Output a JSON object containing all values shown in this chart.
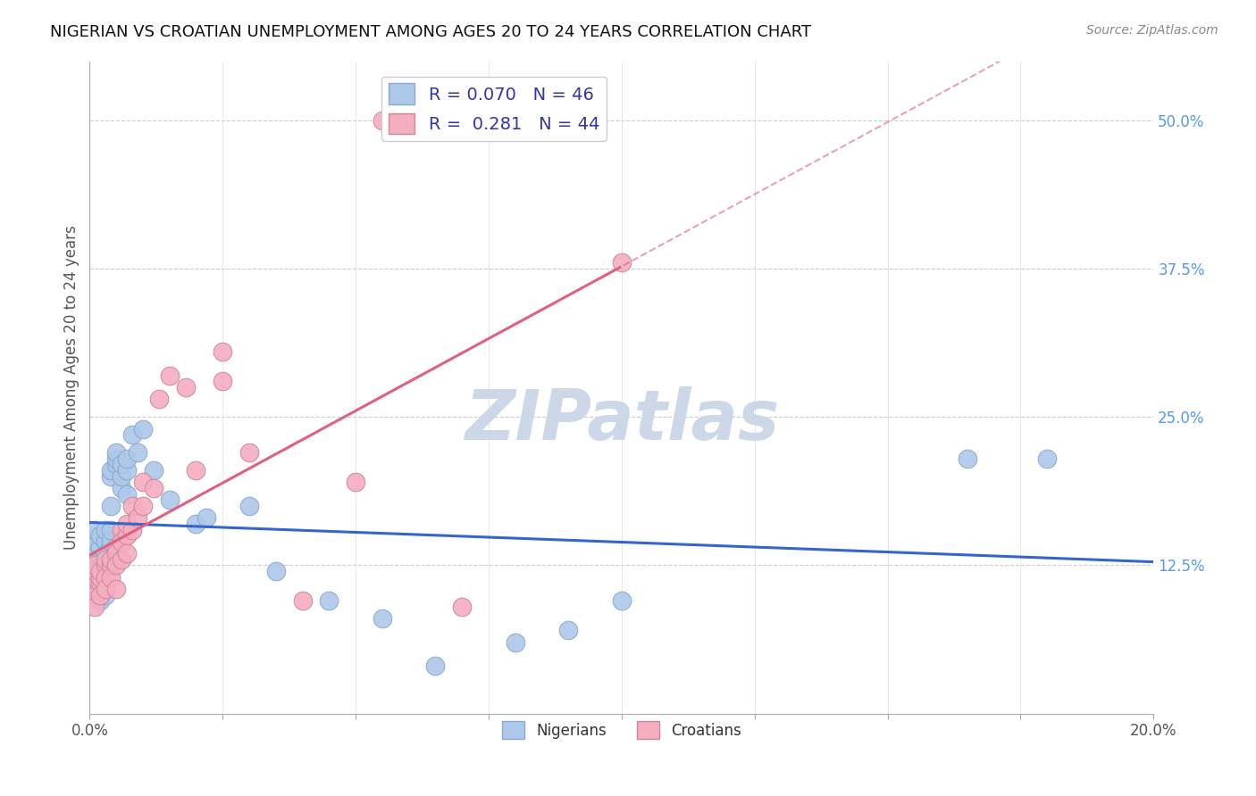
{
  "title": "NIGERIAN VS CROATIAN UNEMPLOYMENT AMONG AGES 20 TO 24 YEARS CORRELATION CHART",
  "source": "Source: ZipAtlas.com",
  "ylabel": "Unemployment Among Ages 20 to 24 years",
  "xlim": [
    0.0,
    0.2
  ],
  "ylim": [
    0.0,
    0.55
  ],
  "nigerian_R": 0.07,
  "nigerian_N": 46,
  "croatian_R": 0.281,
  "croatian_N": 44,
  "nigerian_color": "#adc8e8",
  "croatian_color": "#f5adc0",
  "nigerian_line_color": "#3366cc",
  "croatian_line_color": "#e06080",
  "watermark": "ZIPatlas",
  "watermark_color": "#ccd8e8",
  "background_color": "#ffffff",
  "nigerian_x": [
    0.001,
    0.001,
    0.001,
    0.001,
    0.002,
    0.002,
    0.002,
    0.002,
    0.002,
    0.003,
    0.003,
    0.003,
    0.003,
    0.003,
    0.003,
    0.004,
    0.004,
    0.004,
    0.004,
    0.004,
    0.005,
    0.005,
    0.005,
    0.006,
    0.006,
    0.006,
    0.007,
    0.007,
    0.007,
    0.008,
    0.009,
    0.01,
    0.012,
    0.015,
    0.02,
    0.022,
    0.03,
    0.035,
    0.045,
    0.055,
    0.065,
    0.08,
    0.09,
    0.1,
    0.165,
    0.18
  ],
  "nigerian_y": [
    0.135,
    0.145,
    0.155,
    0.105,
    0.13,
    0.14,
    0.15,
    0.11,
    0.095,
    0.145,
    0.155,
    0.125,
    0.1,
    0.135,
    0.11,
    0.145,
    0.155,
    0.175,
    0.2,
    0.205,
    0.21,
    0.215,
    0.22,
    0.19,
    0.2,
    0.21,
    0.185,
    0.205,
    0.215,
    0.235,
    0.22,
    0.24,
    0.205,
    0.18,
    0.16,
    0.165,
    0.175,
    0.12,
    0.095,
    0.08,
    0.04,
    0.06,
    0.07,
    0.095,
    0.215,
    0.215
  ],
  "croatian_x": [
    0.001,
    0.001,
    0.001,
    0.001,
    0.001,
    0.002,
    0.002,
    0.002,
    0.002,
    0.003,
    0.003,
    0.003,
    0.003,
    0.004,
    0.004,
    0.004,
    0.005,
    0.005,
    0.005,
    0.005,
    0.006,
    0.006,
    0.006,
    0.007,
    0.007,
    0.007,
    0.008,
    0.008,
    0.009,
    0.01,
    0.01,
    0.012,
    0.013,
    0.015,
    0.018,
    0.02,
    0.025,
    0.03,
    0.04,
    0.05,
    0.055,
    0.07,
    0.1,
    0.025
  ],
  "croatian_y": [
    0.115,
    0.12,
    0.125,
    0.1,
    0.09,
    0.11,
    0.115,
    0.12,
    0.1,
    0.125,
    0.13,
    0.115,
    0.105,
    0.125,
    0.13,
    0.115,
    0.14,
    0.135,
    0.125,
    0.105,
    0.155,
    0.145,
    0.13,
    0.15,
    0.16,
    0.135,
    0.155,
    0.175,
    0.165,
    0.175,
    0.195,
    0.19,
    0.265,
    0.285,
    0.275,
    0.205,
    0.28,
    0.22,
    0.095,
    0.195,
    0.5,
    0.09,
    0.38,
    0.305
  ],
  "ytick_values": [
    0.125,
    0.25,
    0.375,
    0.5
  ],
  "ytick_labels": [
    "12.5%",
    "25.0%",
    "37.5%",
    "50.0%"
  ]
}
